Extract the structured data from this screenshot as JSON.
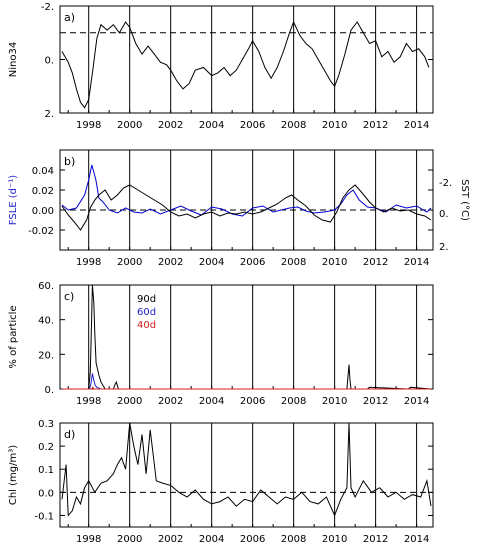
{
  "chart_data": [
    {
      "panel": "a)",
      "type": "line",
      "ylabel": "Nino34",
      "ylim": [
        2,
        -2
      ],
      "y_ticks": [
        "-2.",
        "0.",
        "2."
      ],
      "x_ticks": [
        "1998",
        "2000",
        "2002",
        "2004",
        "2006",
        "2008",
        "2010",
        "2012",
        "2014"
      ],
      "reference_line": {
        "y": -1.0,
        "style": "dashed"
      },
      "series": [
        {
          "color": "#000000",
          "x": [
            1996.7,
            1997.0,
            1997.2,
            1997.4,
            1997.6,
            1997.8,
            1998.0,
            1998.2,
            1998.4,
            1998.6,
            1998.9,
            1999.2,
            1999.5,
            1999.8,
            2000.0,
            2000.3,
            2000.6,
            2000.9,
            2001.2,
            2001.5,
            2001.8,
            2002.0,
            2002.3,
            2002.6,
            2002.9,
            2003.2,
            2003.6,
            2004.0,
            2004.3,
            2004.6,
            2004.9,
            2005.2,
            2005.5,
            2005.8,
            2006.0,
            2006.3,
            2006.6,
            2006.9,
            2007.2,
            2007.5,
            2007.8,
            2008.0,
            2008.3,
            2008.6,
            2008.9,
            2009.2,
            2009.5,
            2009.8,
            2010.0,
            2010.2,
            2010.5,
            2010.8,
            2011.1,
            2011.4,
            2011.7,
            2012.0,
            2012.3,
            2012.6,
            2012.9,
            2013.2,
            2013.5,
            2013.8,
            2014.1,
            2014.4,
            2014.6
          ],
          "y": [
            -0.3,
            0.1,
            0.5,
            1.1,
            1.6,
            1.8,
            1.5,
            0.4,
            -0.8,
            -1.3,
            -1.1,
            -1.3,
            -1.0,
            -1.4,
            -1.2,
            -0.6,
            -0.2,
            -0.5,
            -0.2,
            0.1,
            0.2,
            0.4,
            0.8,
            1.1,
            0.9,
            0.4,
            0.3,
            0.6,
            0.5,
            0.3,
            0.6,
            0.4,
            0.0,
            -0.4,
            -0.7,
            -0.3,
            0.3,
            0.7,
            0.3,
            -0.3,
            -1.0,
            -1.4,
            -0.9,
            -0.6,
            -0.4,
            0.0,
            0.4,
            0.8,
            1.0,
            0.6,
            -0.2,
            -1.1,
            -1.4,
            -1.0,
            -0.6,
            -0.7,
            -0.1,
            -0.3,
            0.1,
            -0.1,
            -0.6,
            -0.3,
            -0.4,
            -0.1,
            0.3
          ]
        }
      ]
    },
    {
      "panel": "b)",
      "type": "line",
      "ylabel": "FSLE (d⁻¹)",
      "ylabel_color": "#2020c8",
      "ylabel_right": "SST (°C)",
      "ylim": [
        -0.04,
        0.06
      ],
      "y_ticks": [
        "0.04",
        "0.02",
        "0.00",
        "-0.02"
      ],
      "y_right_ticks": [
        "-2.",
        "0.",
        "2."
      ],
      "x_ticks": [
        "1998",
        "2000",
        "2002",
        "2004",
        "2006",
        "2008",
        "2010",
        "2012",
        "2014"
      ],
      "reference_line": {
        "y": 0.0,
        "style": "dashed"
      },
      "series": [
        {
          "color": "#0000d0",
          "x": [
            1996.7,
            1997.0,
            1997.4,
            1997.8,
            1998.0,
            1998.15,
            1998.25,
            1998.35,
            1998.5,
            1998.7,
            1999.0,
            1999.4,
            1999.8,
            2000.2,
            2000.6,
            2001.0,
            2001.5,
            2002.0,
            2002.5,
            2003.0,
            2003.5,
            2004.0,
            2004.5,
            2005.0,
            2005.5,
            2006.0,
            2006.5,
            2007.0,
            2007.4,
            2007.8,
            2008.2,
            2008.6,
            2009.0,
            2009.5,
            2010.0,
            2010.3,
            2010.6,
            2010.9,
            2011.2,
            2011.6,
            2012.0,
            2012.5,
            2013.0,
            2013.5,
            2014.0,
            2014.5,
            2014.7
          ],
          "y": [
            0.005,
            0.0,
            0.002,
            0.015,
            0.03,
            0.045,
            0.038,
            0.03,
            0.012,
            0.008,
            0.0,
            -0.003,
            0.002,
            -0.002,
            -0.003,
            0.001,
            -0.004,
            0.0,
            0.004,
            -0.001,
            -0.005,
            0.003,
            0.001,
            -0.004,
            -0.006,
            0.002,
            0.004,
            -0.002,
            0.0,
            0.002,
            0.003,
            -0.001,
            -0.003,
            -0.002,
            0.0,
            0.006,
            0.015,
            0.02,
            0.01,
            0.003,
            0.002,
            -0.002,
            0.005,
            0.002,
            0.004,
            -0.002,
            0.002
          ]
        },
        {
          "color": "#000000",
          "x": [
            1996.7,
            1997.0,
            1997.3,
            1997.6,
            1997.9,
            1998.1,
            1998.3,
            1998.5,
            1998.8,
            1999.1,
            1999.4,
            1999.7,
            2000.0,
            2000.4,
            2000.8,
            2001.2,
            2001.6,
            2002.0,
            2002.4,
            2002.8,
            2003.2,
            2003.6,
            2004.0,
            2004.4,
            2004.8,
            2005.2,
            2005.6,
            2006.0,
            2006.4,
            2006.8,
            2007.2,
            2007.6,
            2007.9,
            2008.2,
            2008.6,
            2009.0,
            2009.4,
            2009.8,
            2010.1,
            2010.4,
            2010.7,
            2011.0,
            2011.3,
            2011.7,
            2012.0,
            2012.4,
            2012.8,
            2013.2,
            2013.6,
            2014.0,
            2014.4,
            2014.7
          ],
          "y": [
            0.004,
            -0.005,
            -0.012,
            -0.02,
            -0.01,
            0.003,
            0.01,
            0.015,
            0.02,
            0.01,
            0.015,
            0.022,
            0.025,
            0.02,
            0.015,
            0.01,
            0.005,
            -0.002,
            -0.006,
            -0.004,
            -0.008,
            -0.004,
            -0.002,
            -0.006,
            -0.003,
            -0.004,
            -0.002,
            -0.004,
            -0.002,
            0.002,
            0.006,
            0.012,
            0.015,
            0.01,
            0.004,
            -0.005,
            -0.01,
            -0.012,
            -0.002,
            0.012,
            0.02,
            0.025,
            0.018,
            0.008,
            0.002,
            -0.002,
            0.002,
            -0.001,
            0.0,
            -0.004,
            -0.006,
            -0.01
          ]
        }
      ]
    },
    {
      "panel": "c)",
      "type": "line",
      "ylabel": "% of particle",
      "ylim": [
        0,
        60
      ],
      "y_ticks": [
        "60.",
        "40.",
        "20.",
        "0."
      ],
      "x_ticks": [
        "1998",
        "2000",
        "2002",
        "2004",
        "2006",
        "2008",
        "2010",
        "2012",
        "2014"
      ],
      "legend": [
        {
          "label": "90d",
          "color": "#000000"
        },
        {
          "label": "60d",
          "color": "#2020c8"
        },
        {
          "label": "40d",
          "color": "#d02020"
        }
      ],
      "series": [
        {
          "name": "90d",
          "color": "#000000",
          "x": [
            1996.7,
            1998.0,
            1998.08,
            1998.12,
            1998.18,
            1998.25,
            1998.3,
            1998.36,
            1998.42,
            1998.5,
            1998.6,
            1998.8,
            1999.2,
            1999.3,
            1999.35,
            1999.45,
            1999.6,
            2001.6,
            2007.7,
            2010.6,
            2010.7,
            2010.75,
            2010.8,
            2010.9,
            2011.6,
            2011.7,
            2013.6,
            2013.7,
            2014.7
          ],
          "y": [
            0,
            0,
            10,
            30,
            60,
            50,
            32,
            15,
            12,
            8,
            4,
            0,
            0,
            3,
            4,
            0,
            0,
            0,
            0,
            0,
            14,
            5,
            0,
            0,
            0,
            1,
            0,
            1,
            0
          ]
        },
        {
          "name": "60d",
          "color": "#2020c8",
          "x": [
            1996.7,
            1998.05,
            1998.12,
            1998.18,
            1998.25,
            1998.32,
            1998.4,
            1998.6,
            2014.7
          ],
          "y": [
            0,
            0,
            4,
            9,
            5,
            2,
            1,
            0,
            0
          ]
        },
        {
          "name": "40d",
          "color": "#d02020",
          "x": [
            1996.7,
            1998.15,
            1998.2,
            1998.25,
            2014.7
          ],
          "y": [
            0,
            0,
            1,
            0,
            0
          ]
        }
      ]
    },
    {
      "panel": "d)",
      "type": "line",
      "ylabel": "Chl (mg/m³)",
      "ylim": [
        -0.15,
        0.3
      ],
      "y_ticks": [
        "0.3",
        "0.2",
        "0.1",
        "0.0",
        "-0.1"
      ],
      "x_ticks": [
        "1998",
        "2000",
        "2002",
        "2004",
        "2006",
        "2008",
        "2010",
        "2012",
        "2014"
      ],
      "reference_line": {
        "y": 0.0,
        "style": "dashed"
      },
      "series": [
        {
          "color": "#000000",
          "x": [
            1996.7,
            1996.9,
            1997.0,
            1997.2,
            1997.4,
            1997.6,
            1997.8,
            1998.0,
            1998.3,
            1998.6,
            1998.9,
            1999.2,
            1999.4,
            1999.6,
            1999.8,
            2000.0,
            2000.2,
            2000.4,
            2000.6,
            2000.8,
            2001.0,
            2001.3,
            2001.6,
            2002.0,
            2002.4,
            2002.8,
            2003.2,
            2003.6,
            2004.0,
            2004.4,
            2004.8,
            2005.2,
            2005.6,
            2006.0,
            2006.4,
            2006.8,
            2007.2,
            2007.6,
            2008.0,
            2008.4,
            2008.8,
            2009.2,
            2009.6,
            2010.0,
            2010.3,
            2010.6,
            2010.7,
            2010.8,
            2011.0,
            2011.4,
            2011.8,
            2012.2,
            2012.6,
            2013.0,
            2013.4,
            2013.8,
            2014.2,
            2014.5,
            2014.7
          ],
          "y": [
            -0.03,
            0.12,
            -0.1,
            -0.08,
            -0.02,
            -0.05,
            0.02,
            0.05,
            0.0,
            0.04,
            0.05,
            0.08,
            0.12,
            0.15,
            0.1,
            0.3,
            0.2,
            0.12,
            0.25,
            0.08,
            0.27,
            0.05,
            0.04,
            0.03,
            0.0,
            -0.02,
            0.01,
            -0.03,
            -0.05,
            -0.04,
            -0.02,
            -0.06,
            -0.03,
            -0.04,
            0.01,
            -0.02,
            -0.05,
            -0.02,
            -0.03,
            0.0,
            -0.04,
            -0.05,
            -0.02,
            -0.1,
            -0.03,
            0.02,
            0.3,
            0.02,
            -0.02,
            0.05,
            0.0,
            0.02,
            -0.02,
            0.0,
            -0.03,
            -0.01,
            -0.02,
            0.05,
            -0.06
          ]
        }
      ]
    }
  ]
}
